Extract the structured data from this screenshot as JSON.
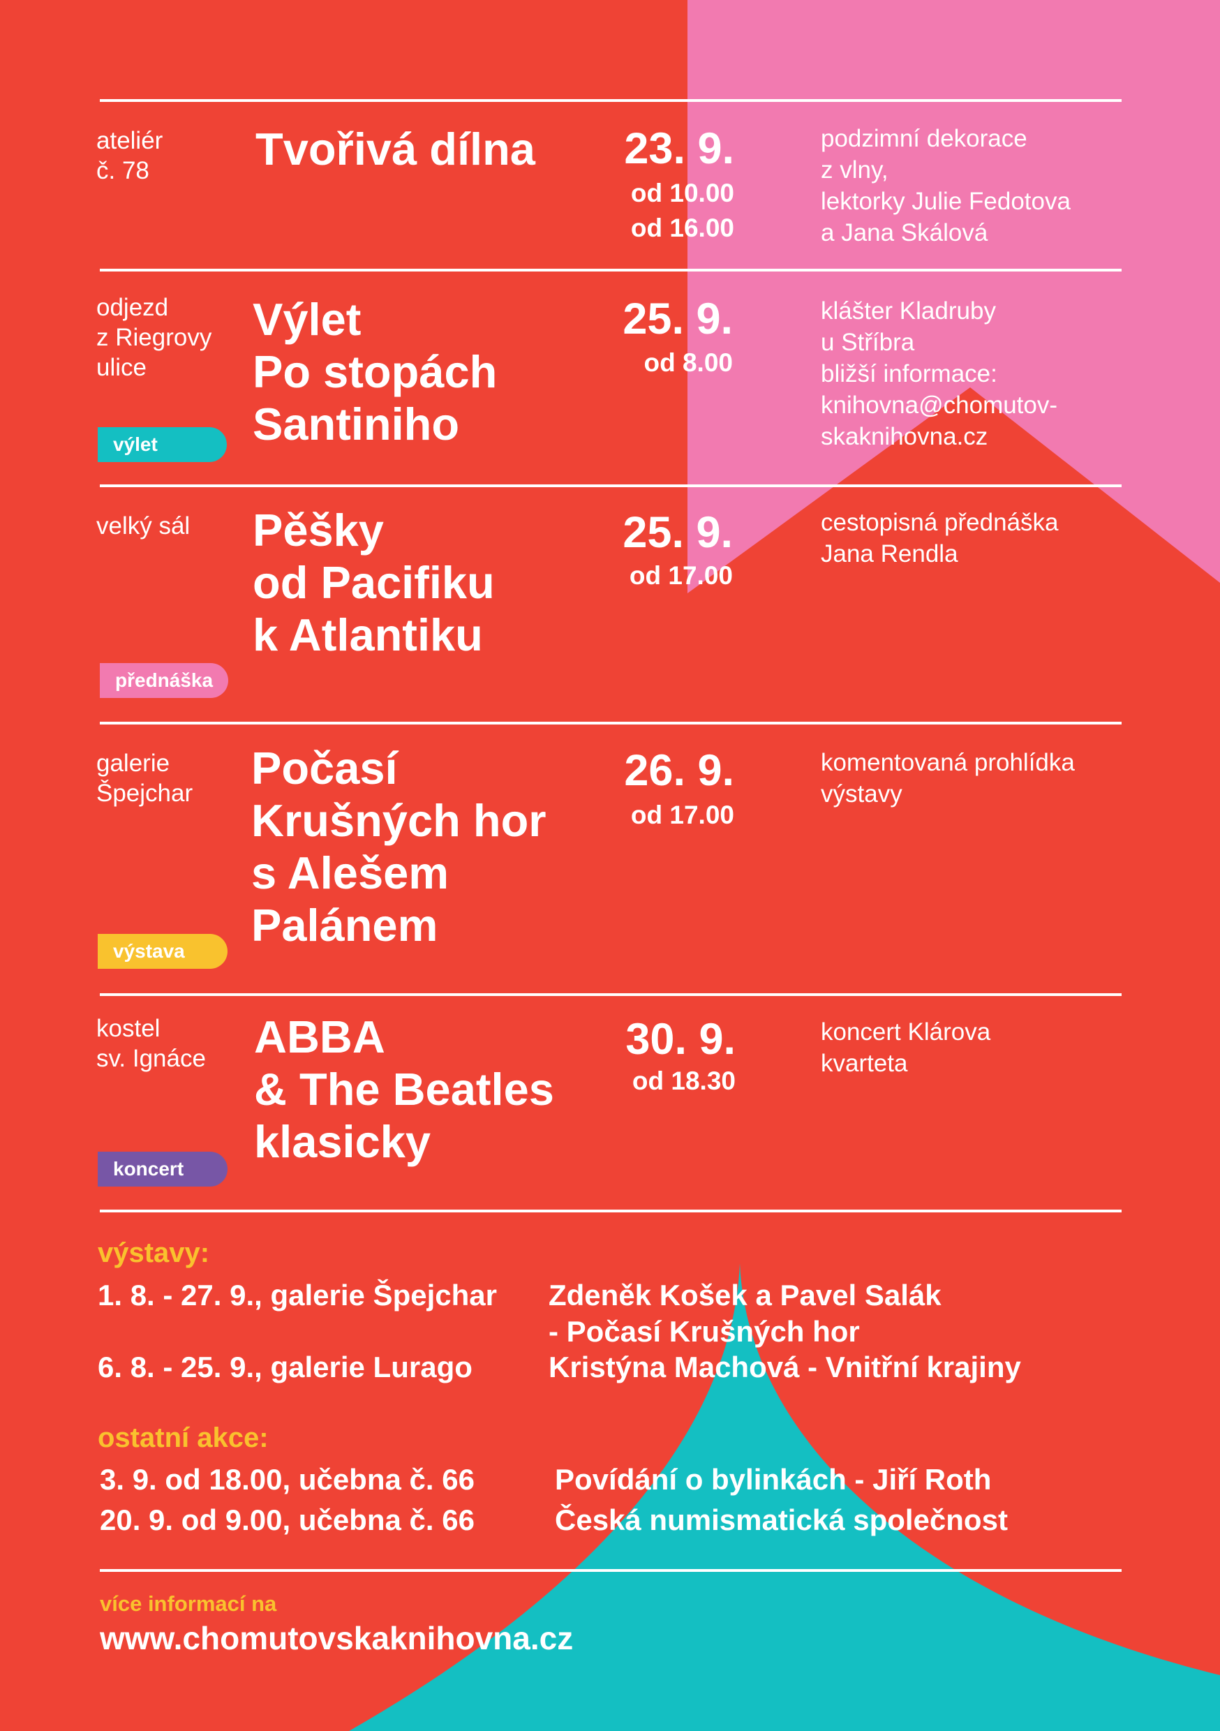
{
  "colors": {
    "background": "#ef4335",
    "pink": "#f27ab0",
    "teal": "#14bfc2",
    "yellow": "#f9c22e",
    "purple": "#7756a6",
    "white": "#ffffff"
  },
  "events": [
    {
      "venue": "ateliér\nč. 78",
      "title": "Tvořivá dílna",
      "date": "23. 9.",
      "time": "od 10.00\nod 16.00",
      "description": "podzimní dekorace\nz vlny,\nlektorky Julie Fedotova\na Jana Skálová",
      "tag": ""
    },
    {
      "venue": "odjezd\nz Riegrovy\nulice",
      "title": "Výlet\nPo stopách\nSantiniho",
      "date": "25. 9.",
      "time": "od 8.00",
      "description": "klášter Kladruby\nu Stříbra\nbližší informace:\nknihovna@chomutov-\nskaknihovna.cz",
      "tag": "výlet"
    },
    {
      "venue": "velký sál",
      "title": "Pěšky\nod Pacifiku\nk Atlantiku",
      "date": "25. 9.",
      "time": "od 17.00",
      "description": "cestopisná přednáška\nJana Rendla",
      "tag": "přednáška"
    },
    {
      "venue": "galerie\nŠpejchar",
      "title": "Počasí\nKrušných hor\ns Alešem\nPalánem",
      "date": "26. 9.",
      "time": "od 17.00",
      "description": "komentovaná prohlídka\nvýstavy",
      "tag": "výstava"
    },
    {
      "venue": "kostel\nsv. Ignáce",
      "title": "ABBA\n& The Beatles\nklasicky",
      "date": "30. 9.",
      "time": "od 18.30",
      "description": "koncert Klárova\nkvarteta",
      "tag": "koncert"
    }
  ],
  "exhibitions": {
    "heading": "výstavy:",
    "items": [
      {
        "when": "1. 8. - 27. 9., galerie Špejchar",
        "what": "Zdeněk Košek a Pavel Salák\n- Počasí Krušných hor"
      },
      {
        "when": "6. 8. - 25. 9., galerie Lurago",
        "what": "Kristýna Machová - Vnitřní krajiny"
      }
    ]
  },
  "other_events": {
    "heading": "ostatní akce:",
    "items": [
      {
        "when": "3. 9. od 18.00, učebna č. 66",
        "what": "Povídání o bylinkách - Jiří Roth"
      },
      {
        "when": "20. 9. od 9.00, učebna č. 66",
        "what": "Česká numismatická společnost"
      }
    ]
  },
  "footer": {
    "more_info": "více informací na",
    "url": "www.chomutovskaknihovna.cz"
  }
}
